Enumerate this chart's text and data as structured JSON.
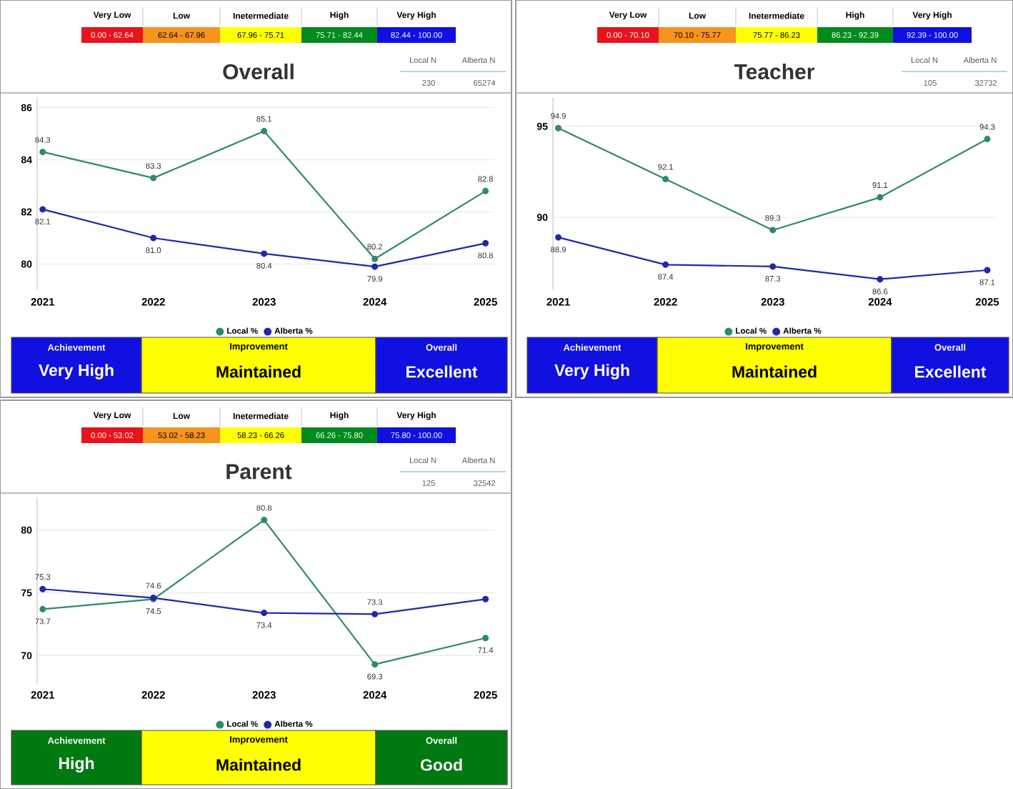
{
  "chart_data": [
    {
      "type": "line",
      "title": "Overall",
      "categories": [
        "2021",
        "2022",
        "2023",
        "2024",
        "2025"
      ],
      "ylim": [
        79,
        86.4
      ],
      "yticks": [
        80,
        82,
        84,
        86
      ],
      "grid": "y",
      "legend": "bottom",
      "marker": "circle",
      "line_style": "solid",
      "series": [
        {
          "name": "Local %",
          "color": "#2e8b6a",
          "values": [
            84.3,
            83.3,
            85.1,
            80.2,
            82.8
          ],
          "value_labels": [
            "84.3",
            "83.3",
            "85.1",
            "80.2",
            "82.8"
          ]
        },
        {
          "name": "Alberta %",
          "color": "#1f2aa8",
          "values": [
            82.1,
            81.0,
            80.4,
            79.9,
            80.8
          ],
          "value_labels": [
            "82.1",
            "81.0",
            "80.4",
            "79.9",
            "80.8"
          ]
        }
      ],
      "annotations": [
        "Very Low",
        "Low",
        "Inetermediate",
        "High",
        "Very High",
        "0.00 - 62.64",
        "62.64 - 67.96",
        "67.96 - 75.71",
        "75.71 - 82.44",
        "82.44 - 100.00",
        "Local N",
        "Alberta N",
        "230",
        "65274",
        "Achievement",
        "Very High",
        "Improvement",
        "Maintained",
        "Overall",
        "Excellent"
      ]
    },
    {
      "type": "line",
      "title": "Teacher",
      "categories": [
        "2021",
        "2022",
        "2023",
        "2024",
        "2025"
      ],
      "ylim": [
        86,
        96.6
      ],
      "yticks": [
        90,
        95
      ],
      "grid": "y",
      "legend": "bottom",
      "marker": "circle",
      "line_style": "solid",
      "series": [
        {
          "name": "Local %",
          "color": "#2e8b6a",
          "values": [
            94.9,
            92.1,
            89.3,
            91.1,
            94.3
          ],
          "value_labels": [
            "94.9",
            "92.1",
            "89.3",
            "91.1",
            "94.3"
          ]
        },
        {
          "name": "Alberta %",
          "color": "#1f2aa8",
          "values": [
            88.9,
            87.4,
            87.3,
            86.6,
            87.1
          ],
          "value_labels": [
            "88.9",
            "87.4",
            "87.3",
            "86.6",
            "87.1"
          ]
        }
      ],
      "annotations": [
        "Very Low",
        "Low",
        "Inetermediate",
        "High",
        "Very High",
        "0.00 - 70.10",
        "70.10 - 75.77",
        "75.77 - 86.23",
        "86.23 - 92.39",
        "92.39 - 100.00",
        "Local N",
        "Alberta N",
        "105",
        "32732",
        "Achievement",
        "Very High",
        "Improvement",
        "Maintained",
        "Overall",
        "Excellent"
      ]
    },
    {
      "type": "line",
      "title": "Parent",
      "categories": [
        "2021",
        "2022",
        "2023",
        "2024",
        "2025"
      ],
      "ylim": [
        67.8,
        82.6
      ],
      "yticks": [
        70,
        75,
        80
      ],
      "grid": "y",
      "legend": "bottom",
      "marker": "circle",
      "line_style": "solid",
      "series": [
        {
          "name": "Local %",
          "color": "#2e8b6a",
          "values": [
            73.7,
            74.5,
            80.8,
            69.3,
            71.4
          ],
          "value_labels": [
            "73.7",
            "74.5",
            "80.8",
            "69.3",
            "71.4"
          ]
        },
        {
          "name": "Alberta %",
          "color": "#1f2aa8",
          "values": [
            75.3,
            74.6,
            73.4,
            73.3,
            74.5
          ],
          "value_labels": [
            "75.3",
            "74.6",
            "73.4",
            "73.3",
            null
          ]
        }
      ],
      "annotations": [
        "Very Low",
        "Low",
        "Inetermediate",
        "High",
        "Very High",
        "0.00 - 53.02",
        "53.02 - 58.23",
        "58.23 - 66.26",
        "66.26 - 75.80",
        "75.80 - 100.00",
        "Local N",
        "Alberta N",
        "125",
        "32542",
        "Achievement",
        "High",
        "Improvement",
        "Maintained",
        "Overall",
        "Good"
      ]
    }
  ]
}
